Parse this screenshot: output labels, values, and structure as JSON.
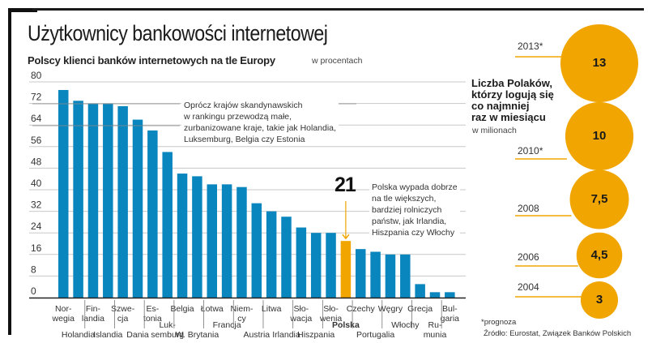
{
  "header": {
    "title": "Użytkownicy bankowości internetowej"
  },
  "chart_data": [
    {
      "type": "bar",
      "title": "Polscy klienci banków internetowych na tle Europy",
      "ylabel": "w procentach",
      "xlabel": "",
      "ylim": [
        0,
        80
      ],
      "yticks": [
        0,
        8,
        16,
        24,
        32,
        40,
        48,
        56,
        64,
        72,
        80
      ],
      "grid": true,
      "highlight_category": "Polska",
      "colors": {
        "bar": "#0a86bf",
        "highlight": "#f0a500"
      },
      "categories": [
        "Norwegia",
        "Holandia",
        "Finlandia",
        "Islandia",
        "Szwecja",
        "Dania",
        "Estonia",
        "Luksemburg",
        "Belgia",
        "Łotwa",
        "Francja",
        "W. Brytania",
        "Niemcy",
        "Austria",
        "Litwa",
        "Irlandia",
        "Słowacja",
        "Słowenia",
        "Hiszpania",
        "Polska",
        "Czechy",
        "Portugalia",
        "Węgry",
        "Włochy",
        "Grecja",
        "Rumunia",
        "Bułgaria"
      ],
      "tick_labels": [
        {
          "text": "Nor-\nwegia",
          "row": "upper"
        },
        {
          "text": "Holandia",
          "row": "lower"
        },
        {
          "text": "Fin-\nlandia",
          "row": "upper"
        },
        {
          "text": "Islandia",
          "row": "lower"
        },
        {
          "text": "Szwe-\ncja",
          "row": "upper"
        },
        {
          "text": "Dania",
          "row": "lower"
        },
        {
          "text": "Es-\ntonia",
          "row": "upper"
        },
        {
          "text": "Luk-\nsemburg",
          "row": "lower"
        },
        {
          "text": "Belgia",
          "row": "upper"
        },
        {
          "text": "W. Brytania",
          "row": "lower"
        },
        {
          "text": "Łotwa",
          "row": "upper"
        },
        {
          "text": "Francja",
          "row": "middle"
        },
        {
          "text": "Niem-\ncy",
          "row": "upper"
        },
        {
          "text": "Austria",
          "row": "lower"
        },
        {
          "text": "Litwa",
          "row": "upper"
        },
        {
          "text": "Irlandia",
          "row": "lower"
        },
        {
          "text": "Sło-\nwacja",
          "row": "upper"
        },
        {
          "text": "Hiszpania",
          "row": "lower"
        },
        {
          "text": "Sło-\nwenia",
          "row": "upper"
        },
        {
          "text": "Polska",
          "row": "middle"
        },
        {
          "text": "Czechy",
          "row": "upper"
        },
        {
          "text": "Portugalia",
          "row": "lower"
        },
        {
          "text": "Węgry",
          "row": "upper"
        },
        {
          "text": "Włochy",
          "row": "middle"
        },
        {
          "text": "Grecja",
          "row": "upper"
        },
        {
          "text": "Ru-\nmunia",
          "row": "lower"
        },
        {
          "text": "Bul-\ngaria",
          "row": "upper"
        }
      ],
      "values": [
        77,
        73,
        72,
        72,
        71,
        66,
        62,
        54,
        46,
        45,
        42,
        42,
        41,
        35,
        32,
        30,
        26,
        24,
        24,
        21,
        18,
        17,
        16,
        16,
        5,
        2,
        2
      ],
      "annotations": [
        {
          "text": "Oprócz krajów skandynawskich\nw rankingu przewodzą małe,\nzurbanizowane kraje, takie jak Holandia,\nLuksemburg, Belgia czy Estonia"
        },
        {
          "text": "21",
          "target": "Polska"
        },
        {
          "text": "Polska wypada dobrze\nna tle większych,\nbardziej rolniczych\npaństw, jak Irlandia,\nHiszpania czy Włochy"
        }
      ]
    },
    {
      "type": "bubble",
      "title": "Liczba Polaków, którzy logują się co najmniej raz w miesiącu",
      "unit": "w milionach",
      "color": "#f0a500",
      "categories": [
        "2004",
        "2006",
        "2008",
        "2010*",
        "2013*"
      ],
      "values": [
        3,
        4.5,
        7.5,
        10,
        13
      ],
      "value_labels": [
        "3",
        "4,5",
        "7,5",
        "10",
        "13"
      ]
    }
  ],
  "right_panel": {
    "title_lines": [
      "Liczba Polaków,",
      "którzy logują się",
      "co najmniej",
      "raz w miesiącu"
    ],
    "unit": "w milionach"
  },
  "footer": {
    "footnote": "*prognoza",
    "source": "Źródło: Eurostat, Związek Banków Polskich"
  }
}
